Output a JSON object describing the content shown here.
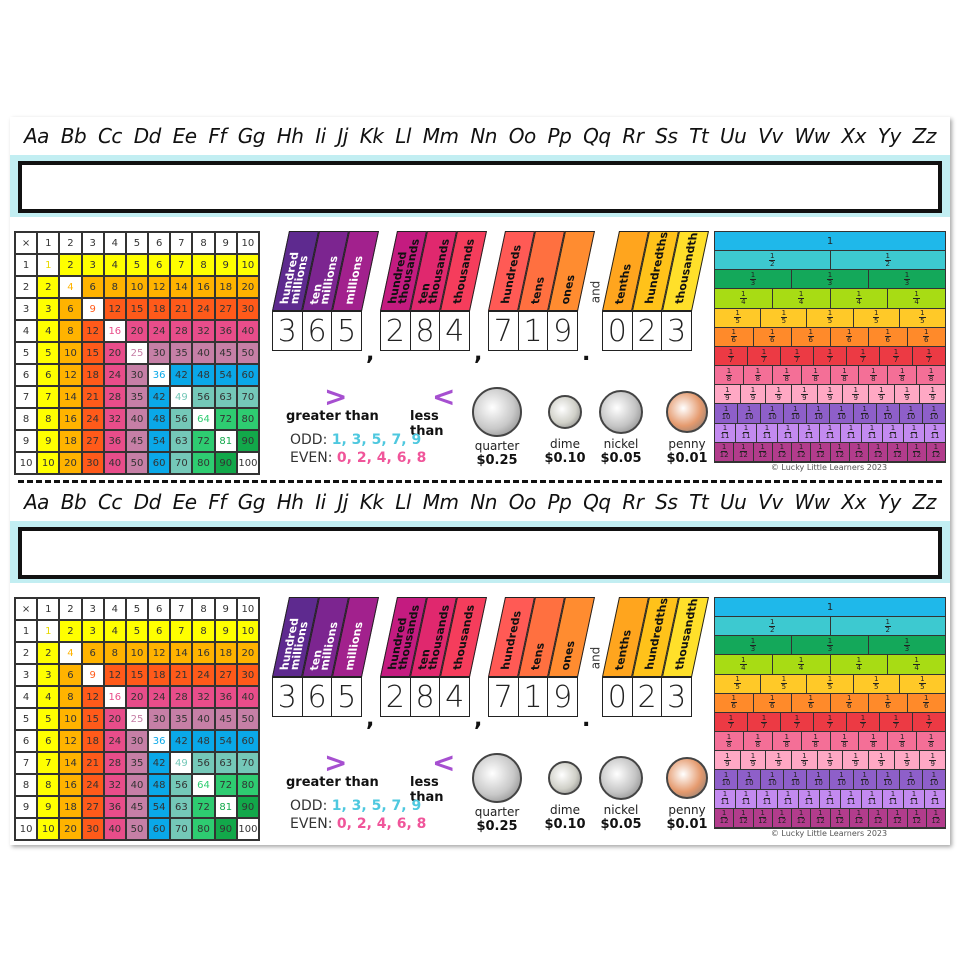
{
  "alphabet": [
    "Aa",
    "Bb",
    "Cc",
    "Dd",
    "Ee",
    "Ff",
    "Gg",
    "Hh",
    "Ii",
    "Jj",
    "Kk",
    "Ll",
    "Mm",
    "Nn",
    "Oo",
    "Pp",
    "Qq",
    "Rr",
    "Ss",
    "Tt",
    "Uu",
    "Vv",
    "Ww",
    "Xx",
    "Yy",
    "Zz"
  ],
  "name_field": {
    "value": "",
    "band_color": "#c2eef2"
  },
  "multiplication": {
    "corner": "×",
    "header": [
      1,
      2,
      3,
      4,
      5,
      6,
      7,
      8,
      9,
      10
    ],
    "colors": {
      "1": "#ffff00",
      "2": "#ffb300",
      "3": "#ff5a1a",
      "4": "#e84d8a",
      "5": "#c67fa6",
      "6": "#0aa8e8",
      "7": "#74c8b8",
      "8": "#2ecc71",
      "9": "#12a84a",
      "diag": "#ffffff"
    }
  },
  "place_value": {
    "groups": [
      {
        "labels": [
          "hundred\nmillions",
          "ten\nmillions",
          "millions"
        ],
        "colors": [
          "#5e2a8f",
          "#7c2590",
          "#a2218d"
        ],
        "label_color": "#ffffff",
        "digits": [
          "3",
          "6",
          "5"
        ],
        "sep": ","
      },
      {
        "labels": [
          "hundred\nthousands",
          "ten\nthousands",
          "thousands"
        ],
        "colors": [
          "#c41b80",
          "#e0286e",
          "#f53d5c"
        ],
        "label_color": "#111111",
        "digits": [
          "2",
          "8",
          "4"
        ],
        "sep": ","
      },
      {
        "labels": [
          "hundreds",
          "tens",
          "ones"
        ],
        "colors": [
          "#ff5a55",
          "#ff7040",
          "#ff8c30"
        ],
        "label_color": "#111111",
        "digits": [
          "7",
          "1",
          "9"
        ],
        "sep": "."
      },
      {
        "labels": [
          "tenths",
          "hundredths",
          "thousandths"
        ],
        "colors": [
          "#ffa51e",
          "#ffc21a",
          "#ffe02a"
        ],
        "label_color": "#111111",
        "digits": [
          "0",
          "2",
          "3"
        ],
        "sep": ""
      }
    ],
    "and_label": "and"
  },
  "comparison": {
    "greater": {
      "symbol": ">",
      "label": "greater than"
    },
    "less": {
      "symbol": "<",
      "label": "less than"
    }
  },
  "odd_even": {
    "odd_label": "ODD:",
    "odd_values": "1, 3, 5, 7, 9",
    "even_label": "EVEN:",
    "even_values": "0, 2, 4, 6, 8"
  },
  "coins": [
    {
      "name": "quarter",
      "value": "$0.25",
      "color": "#c8c8c8",
      "size": 46
    },
    {
      "name": "dime",
      "value": "$0.10",
      "color": "#d0d0c8",
      "size": 30
    },
    {
      "name": "nickel",
      "value": "$0.05",
      "color": "#c4c4c4",
      "size": 40
    },
    {
      "name": "penny",
      "value": "$0.01",
      "color": "#e59a6e",
      "size": 38
    }
  ],
  "fractions": {
    "rows": [
      {
        "den": 1,
        "color": "#1fb8ea"
      },
      {
        "den": 2,
        "color": "#3dc9d0"
      },
      {
        "den": 3,
        "color": "#14a85a"
      },
      {
        "den": 4,
        "color": "#a8dc14"
      },
      {
        "den": 5,
        "color": "#ffc928"
      },
      {
        "den": 6,
        "color": "#ff8a2a"
      },
      {
        "den": 7,
        "color": "#ec3a44"
      },
      {
        "den": 8,
        "color": "#f46f97"
      },
      {
        "den": 9,
        "color": "#ffa8c4"
      },
      {
        "den": 10,
        "color": "#8e5fc9"
      },
      {
        "den": 11,
        "color": "#c38af0"
      },
      {
        "den": 12,
        "color": "#b23c8c"
      }
    ]
  },
  "copyright": "© Lucky Little Learners 2023"
}
